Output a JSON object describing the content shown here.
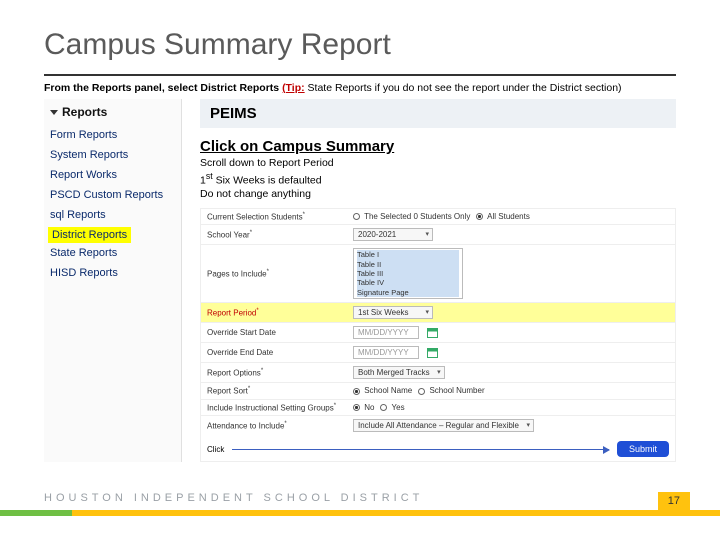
{
  "title": "Campus Summary Report",
  "instruction": {
    "lead_bold": "From the Reports panel, select District Reports ",
    "tip_label": "(Tip:",
    "tip_rest": " State Reports if you do not see the report under the District section)"
  },
  "reports_panel": {
    "header": "Reports",
    "items": [
      "Form Reports",
      "System Reports",
      "Report Works",
      "PSCD Custom Reports",
      "sql Reports",
      "District Reports",
      "State Reports",
      "HISD Reports"
    ],
    "highlight_index": 5
  },
  "right": {
    "banner": "PEIMS",
    "title2": "Click on Campus Summary",
    "sub1": "Scroll down to Report Period",
    "sub2_html": "1<sup>st</sup> Six Weeks is defaulted",
    "sub3": "Do not change anything"
  },
  "form": {
    "rows": [
      {
        "label": "Current Selection Students*",
        "type": "radios",
        "options": [
          {
            "text": "The Selected 0 Students Only",
            "on": false
          },
          {
            "text": "All Students",
            "on": true
          }
        ]
      },
      {
        "label": "School Year*",
        "type": "select",
        "value": "2020-2021"
      },
      {
        "label": "Pages to Include*",
        "type": "multi",
        "options": [
          "Table I",
          "Table II",
          "Table III",
          "Table IV",
          "Signature Page"
        ],
        "selected": [
          0,
          1,
          2,
          3,
          4
        ]
      },
      {
        "label": "Report Period*",
        "type": "select",
        "value": "1st Six Weeks",
        "hl": true,
        "red": true
      },
      {
        "label": "Override Start Date",
        "type": "date",
        "placeholder": "MM/DD/YYYY"
      },
      {
        "label": "Override End Date",
        "type": "date",
        "placeholder": "MM/DD/YYYY"
      },
      {
        "label": "Report Options*",
        "type": "select",
        "value": "Both Merged Tracks"
      },
      {
        "label": "Report Sort*",
        "type": "radios",
        "options": [
          {
            "text": "School Name",
            "on": true
          },
          {
            "text": "School Number",
            "on": false
          }
        ]
      },
      {
        "label": "Include Instructional Setting Groups*",
        "type": "radios",
        "options": [
          {
            "text": "No",
            "on": true
          },
          {
            "text": "Yes",
            "on": false
          }
        ]
      },
      {
        "label": "Attendance to Include*",
        "type": "select",
        "value": "Include All Attendance – Regular and Flexible"
      }
    ],
    "click_label": "Click",
    "submit_label": "Submit"
  },
  "footer": {
    "org": "HOUSTON INDEPENDENT SCHOOL DISTRICT",
    "page": "17"
  },
  "colors": {
    "green": "#6fbf44",
    "yellow": "#ffc20e",
    "blue": "#1f4fd6",
    "hl": "#ffff00"
  }
}
